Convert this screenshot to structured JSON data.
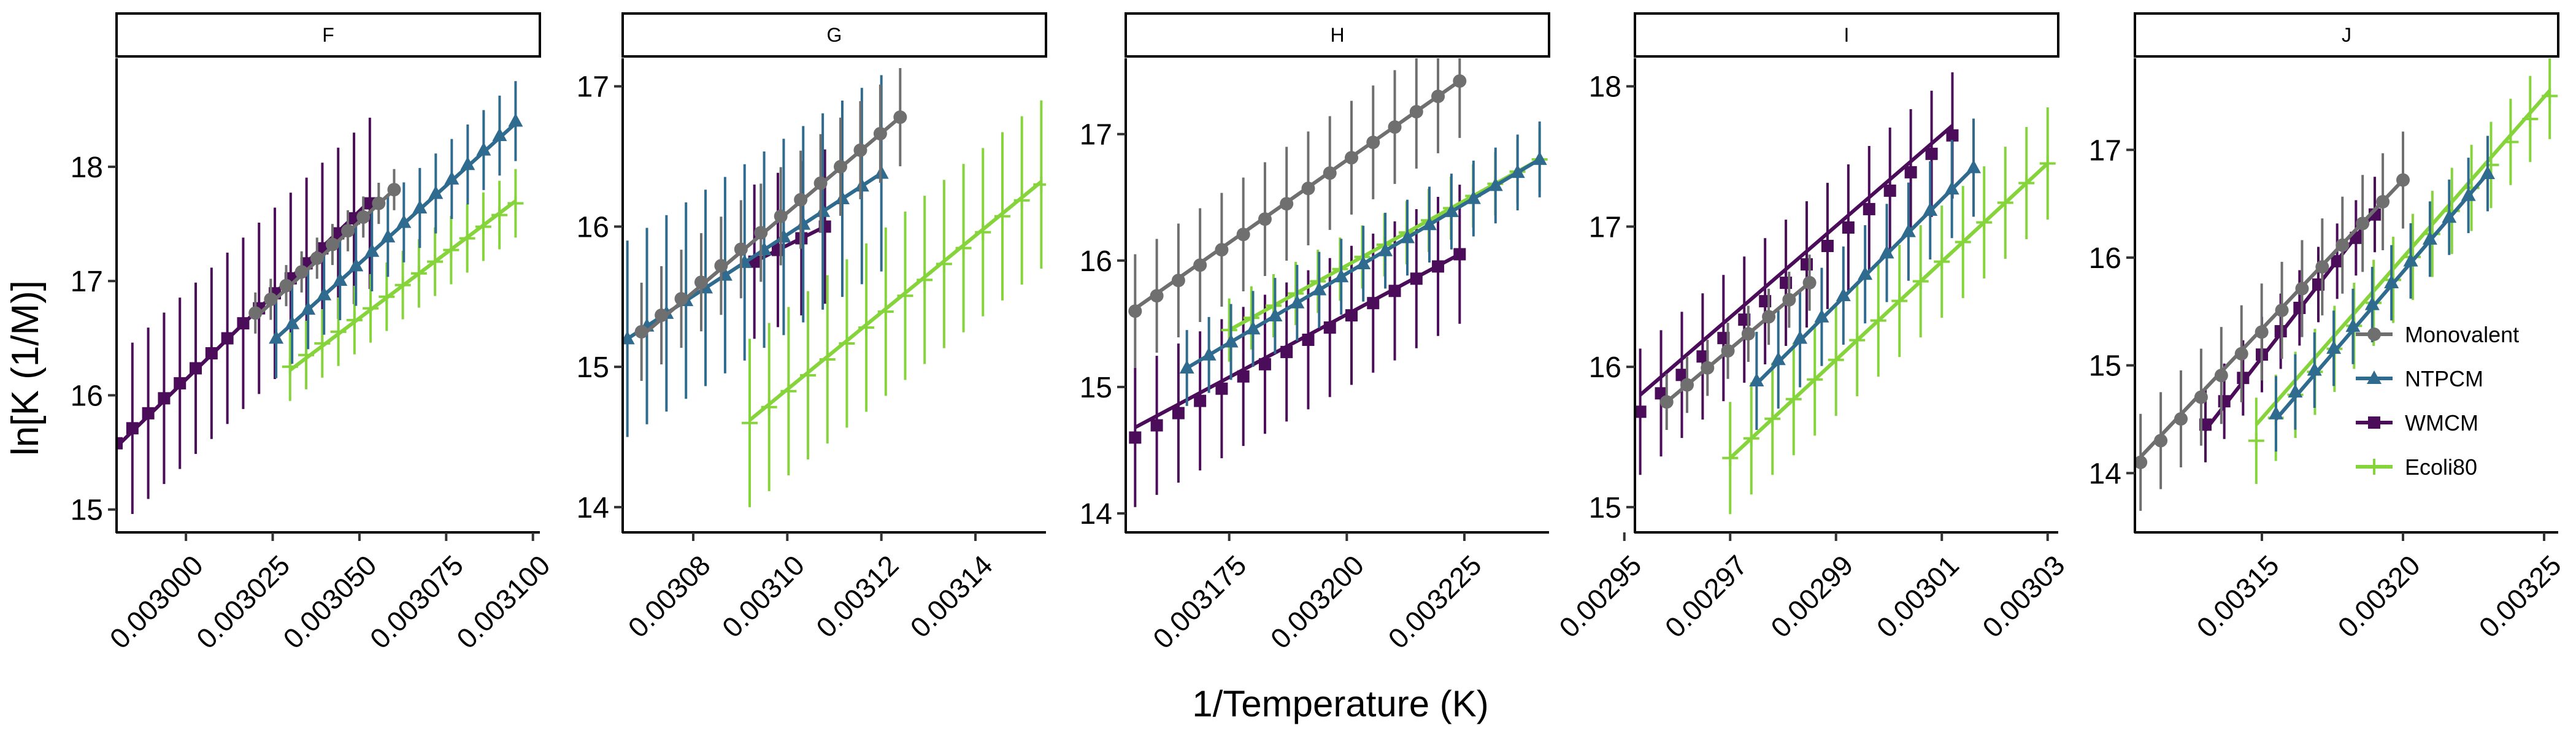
{
  "chart_data": {
    "type": "scatter",
    "ylabel": "ln[K (1/M)]",
    "xlabel": "1/Temperature (K)",
    "legend": {
      "placement": "right",
      "entries": [
        "Monovalent",
        "NTPCM",
        "WMCM",
        "Ecoli80"
      ]
    },
    "series_styles": [
      {
        "name": "Monovalent",
        "color": "#6f6f6f",
        "marker": "circle"
      },
      {
        "name": "NTPCM",
        "color": "#2f6b8e",
        "marker": "triangle"
      },
      {
        "name": "WMCM",
        "color": "#4b0c5a",
        "marker": "square"
      },
      {
        "name": "Ecoli80",
        "color": "#86d43b",
        "marker": "plus"
      }
    ],
    "grid": false,
    "panels": [
      {
        "title": "F",
        "xlim": [
          0.00298,
          0.003102
        ],
        "ylim": [
          14.8,
          18.95
        ],
        "xticks": [
          0.003,
          0.003025,
          0.00305,
          0.003075,
          0.0031
        ],
        "xtick_labels": [
          "0.003000",
          "0.003025",
          "0.003050",
          "0.003075",
          "0.003100"
        ],
        "yticks": [
          15,
          16,
          17,
          18
        ],
        "ytick_labels": [
          "15",
          "16",
          "17",
          "18"
        ],
        "series": [
          {
            "name": "Monovalent",
            "x0": 0.00302,
            "x1": 0.00306,
            "y0": 16.72,
            "y1": 17.8,
            "n": 10,
            "err": 0.18,
            "fit": [
              0.00302,
              0.00306,
              16.68,
              17.8
            ]
          },
          {
            "name": "NTPCM",
            "x0": 0.003026,
            "x1": 0.003095,
            "y0": 16.5,
            "y1": 18.4,
            "n": 16,
            "err": 0.35,
            "fit": [
              0.003026,
              0.003095,
              16.5,
              18.38
            ]
          },
          {
            "name": "WMCM",
            "x0": 0.00298,
            "x1": 0.003053,
            "y0": 15.58,
            "y1": 17.68,
            "n": 17,
            "err": 0.75,
            "fit": [
              0.00298,
              0.003053,
              15.55,
              17.7
            ]
          },
          {
            "name": "Ecoli80",
            "x0": 0.00303,
            "x1": 0.003095,
            "y0": 16.25,
            "y1": 17.68,
            "n": 15,
            "err": 0.3,
            "fit": [
              0.00303,
              0.003095,
              16.22,
              17.7
            ]
          }
        ]
      },
      {
        "title": "G",
        "xlim": [
          0.003065,
          0.003155
        ],
        "ylim": [
          13.82,
          17.2
        ],
        "xticks": [
          0.00308,
          0.0031,
          0.00312,
          0.00314
        ],
        "xtick_labels": [
          "0.00308",
          "0.00310",
          "0.00312",
          "0.00314"
        ],
        "yticks": [
          14,
          15,
          16,
          17
        ],
        "ytick_labels": [
          "14",
          "15",
          "16",
          "17"
        ],
        "series": [
          {
            "name": "Monovalent",
            "x0": 0.003069,
            "x1": 0.003124,
            "y0": 15.25,
            "y1": 16.78,
            "n": 14,
            "err": 0.35,
            "fit": [
              0.003069,
              0.003124,
              15.22,
              16.78
            ]
          },
          {
            "name": "NTPCM",
            "x0": 0.003066,
            "x1": 0.00312,
            "y0": 15.2,
            "y1": 16.38,
            "n": 14,
            "err": 0.7,
            "fit": [
              0.003066,
              0.00312,
              15.2,
              16.38
            ]
          },
          {
            "name": "WMCM",
            "x0": 0.003093,
            "x1": 0.003108,
            "y0": 15.75,
            "y1": 16.0,
            "n": 4,
            "err": 0.55,
            "fit": [
              0.003093,
              0.003108,
              15.75,
              16.0
            ]
          },
          {
            "name": "Ecoli80",
            "x0": 0.003092,
            "x1": 0.003154,
            "y0": 14.6,
            "y1": 16.3,
            "n": 16,
            "err": 0.6,
            "fit": [
              0.003092,
              0.003154,
              14.62,
              16.32
            ]
          }
        ]
      },
      {
        "title": "H",
        "xlim": [
          0.003153,
          0.003243
        ],
        "ylim": [
          13.85,
          17.6
        ],
        "xticks": [
          0.003175,
          0.0032,
          0.003225
        ],
        "xtick_labels": [
          "0.003175",
          "0.003200",
          "0.003225"
        ],
        "yticks": [
          14,
          15,
          16,
          17
        ],
        "ytick_labels": [
          "14",
          "15",
          "16",
          "17"
        ],
        "series": [
          {
            "name": "Monovalent",
            "x0": 0.003155,
            "x1": 0.003224,
            "y0": 15.6,
            "y1": 17.42,
            "n": 16,
            "err": 0.45,
            "fit": [
              0.003155,
              0.003224,
              15.62,
              17.42
            ]
          },
          {
            "name": "NTPCM",
            "x0": 0.003166,
            "x1": 0.003241,
            "y0": 15.15,
            "y1": 16.8,
            "n": 17,
            "err": 0.3,
            "fit": [
              0.003166,
              0.003241,
              15.15,
              16.8
            ]
          },
          {
            "name": "WMCM",
            "x0": 0.003155,
            "x1": 0.003224,
            "y0": 14.6,
            "y1": 16.05,
            "n": 16,
            "err": 0.55,
            "fit": [
              0.003155,
              0.003224,
              14.68,
              16.05
            ]
          },
          {
            "name": "Ecoli80",
            "x0": 0.003175,
            "x1": 0.003241,
            "y0": 15.45,
            "y1": 16.8,
            "n": 15,
            "err": 0.25,
            "fit": [
              0.003175,
              0.003241,
              15.45,
              16.8
            ]
          }
        ]
      },
      {
        "title": "I",
        "xlim": [
          0.002952,
          0.003032
        ],
        "ylim": [
          14.82,
          18.2
        ],
        "xticks": [
          0.00295,
          0.00297,
          0.00299,
          0.00301,
          0.00303
        ],
        "xtick_labels": [
          "0.00295",
          "0.00297",
          "0.00299",
          "0.00301",
          "0.00303"
        ],
        "yticks": [
          15,
          16,
          17,
          18
        ],
        "ytick_labels": [
          "15",
          "16",
          "17",
          "18"
        ],
        "series": [
          {
            "name": "Monovalent",
            "x0": 0.002958,
            "x1": 0.002985,
            "y0": 15.75,
            "y1": 16.6,
            "n": 8,
            "err": 0.2,
            "fit": [
              0.002958,
              0.002985,
              15.75,
              16.6
            ]
          },
          {
            "name": "NTPCM",
            "x0": 0.002975,
            "x1": 0.003016,
            "y0": 15.9,
            "y1": 17.42,
            "n": 11,
            "err": 0.35,
            "fit": [
              0.002975,
              0.003016,
              15.88,
              17.42
            ]
          },
          {
            "name": "WMCM",
            "x0": 0.002953,
            "x1": 0.003012,
            "y0": 15.68,
            "y1": 17.65,
            "n": 16,
            "err": 0.45,
            "fit": [
              0.002953,
              0.003012,
              15.8,
              17.72
            ]
          },
          {
            "name": "Ecoli80",
            "x0": 0.00297,
            "x1": 0.00303,
            "y0": 15.35,
            "y1": 17.45,
            "n": 16,
            "err": 0.4,
            "fit": [
              0.00297,
              0.00303,
              15.35,
              17.45
            ]
          }
        ]
      },
      {
        "title": "J",
        "xlim": [
          0.003105,
          0.003255
        ],
        "ylim": [
          13.45,
          17.85
        ],
        "xticks": [
          0.00315,
          0.0032,
          0.00325
        ],
        "xtick_labels": [
          "0.00315",
          "0.00320",
          "0.00325"
        ],
        "yticks": [
          14,
          15,
          16,
          17
        ],
        "ytick_labels": [
          "14",
          "15",
          "16",
          "17"
        ],
        "series": [
          {
            "name": "Monovalent",
            "x0": 0.003107,
            "x1": 0.0032,
            "y0": 14.1,
            "y1": 16.72,
            "n": 14,
            "err": 0.45,
            "fit": [
              0.003107,
              0.0032,
              14.15,
              16.72
            ]
          },
          {
            "name": "NTPCM",
            "x0": 0.003155,
            "x1": 0.00323,
            "y0": 14.55,
            "y1": 16.78,
            "n": 12,
            "err": 0.35,
            "fit": [
              0.003155,
              0.00323,
              14.5,
              16.78
            ]
          },
          {
            "name": "WMCM",
            "x0": 0.00313,
            "x1": 0.00319,
            "y0": 14.45,
            "y1": 16.4,
            "n": 10,
            "err": 0.35,
            "fit": [
              0.00313,
              0.00319,
              14.4,
              16.42
            ]
          },
          {
            "name": "Ecoli80",
            "x0": 0.003148,
            "x1": 0.003252,
            "y0": 14.3,
            "y1": 17.5,
            "n": 16,
            "err": 0.4,
            "fit": [
              0.003148,
              0.003252,
              14.45,
              17.55
            ]
          }
        ]
      }
    ]
  }
}
